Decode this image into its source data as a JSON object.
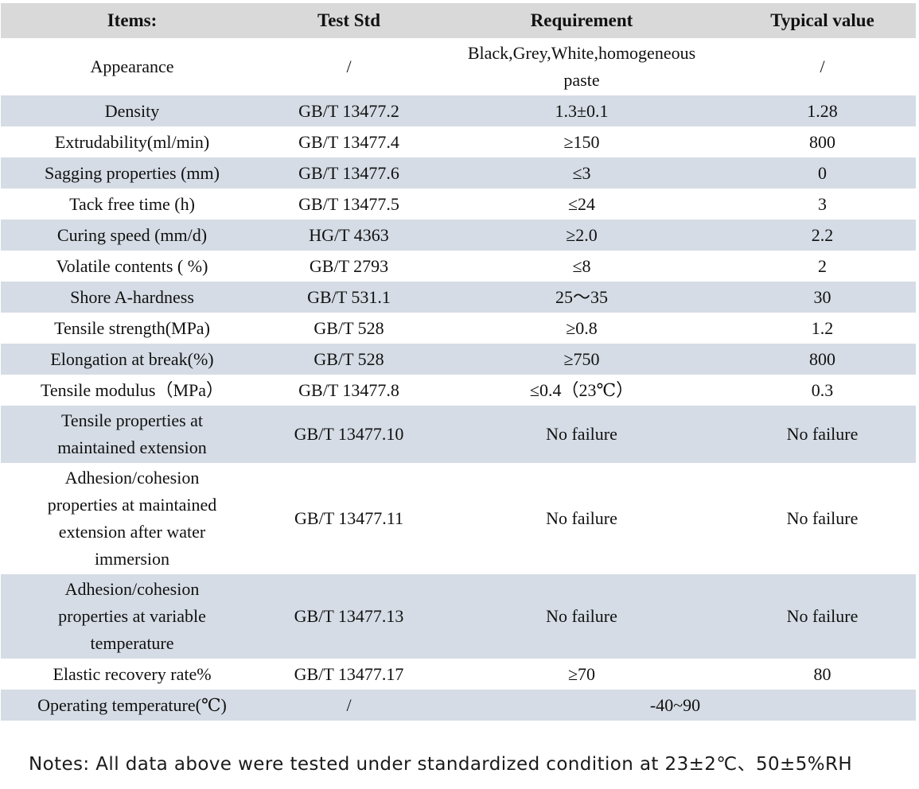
{
  "colors": {
    "header_bg": "#d9d9d9",
    "row_alt": "#d5dce5",
    "text": "#111111",
    "notes_text": "#1a1a1a"
  },
  "table": {
    "headers": [
      "Items:",
      "Test Std",
      "Requirement",
      "Typical value"
    ],
    "rows": [
      {
        "item": "Appearance",
        "std": "/",
        "req": "Black,Grey,White,homogeneous\npaste",
        "typ": "/"
      },
      {
        "item": "Density",
        "std": "GB/T 13477.2",
        "req": "1.3±0.1",
        "typ": "1.28"
      },
      {
        "item": "Extrudability(ml/min)",
        "std": "GB/T 13477.4",
        "req": "≥150",
        "typ": "800"
      },
      {
        "item": "Sagging properties (mm)",
        "std": "GB/T 13477.6",
        "req": "≤3",
        "typ": "0"
      },
      {
        "item": "Tack free time (h)",
        "std": "GB/T 13477.5",
        "req": "≤24",
        "typ": "3"
      },
      {
        "item": "Curing speed (mm/d)",
        "std": "HG/T 4363",
        "req": "≥2.0",
        "typ": "2.2"
      },
      {
        "item": "Volatile contents ( %)",
        "std": "GB/T 2793",
        "req": "≤8",
        "typ": "2"
      },
      {
        "item": "Shore A-hardness",
        "std": "GB/T 531.1",
        "req": "25～35",
        "typ": "30"
      },
      {
        "item": "Tensile strength(MPa)",
        "std": "GB/T 528",
        "req": "≥0.8",
        "typ": "1.2"
      },
      {
        "item": "Elongation at break(%)",
        "std": "GB/T 528",
        "req": "≥750",
        "typ": "800"
      },
      {
        "item": "Tensile modulus（MPa）",
        "std": "GB/T 13477.8",
        "req": "≤0.4（23℃）",
        "typ": "0.3"
      },
      {
        "item": "Tensile properties at\nmaintained extension",
        "std": "GB/T 13477.10",
        "req": "No failure",
        "typ": "No failure"
      },
      {
        "item": "Adhesion/cohesion\nproperties at maintained\nextension after water\nimmersion",
        "std": "GB/T 13477.11",
        "req": "No failure",
        "typ": "No failure"
      },
      {
        "item": "Adhesion/cohesion\nproperties at variable\ntemperature",
        "std": "GB/T 13477.13",
        "req": "No failure",
        "typ": "No failure"
      },
      {
        "item": "Elastic recovery rate%",
        "std": "GB/T 13477.17",
        "req": "≥70",
        "typ": "80"
      },
      {
        "item": "Operating temperature(℃)",
        "std": "/",
        "req_span": "-40~90"
      }
    ]
  },
  "notes": "Notes: All data above were tested under standardized condition at 23±2℃、50±5%RH"
}
